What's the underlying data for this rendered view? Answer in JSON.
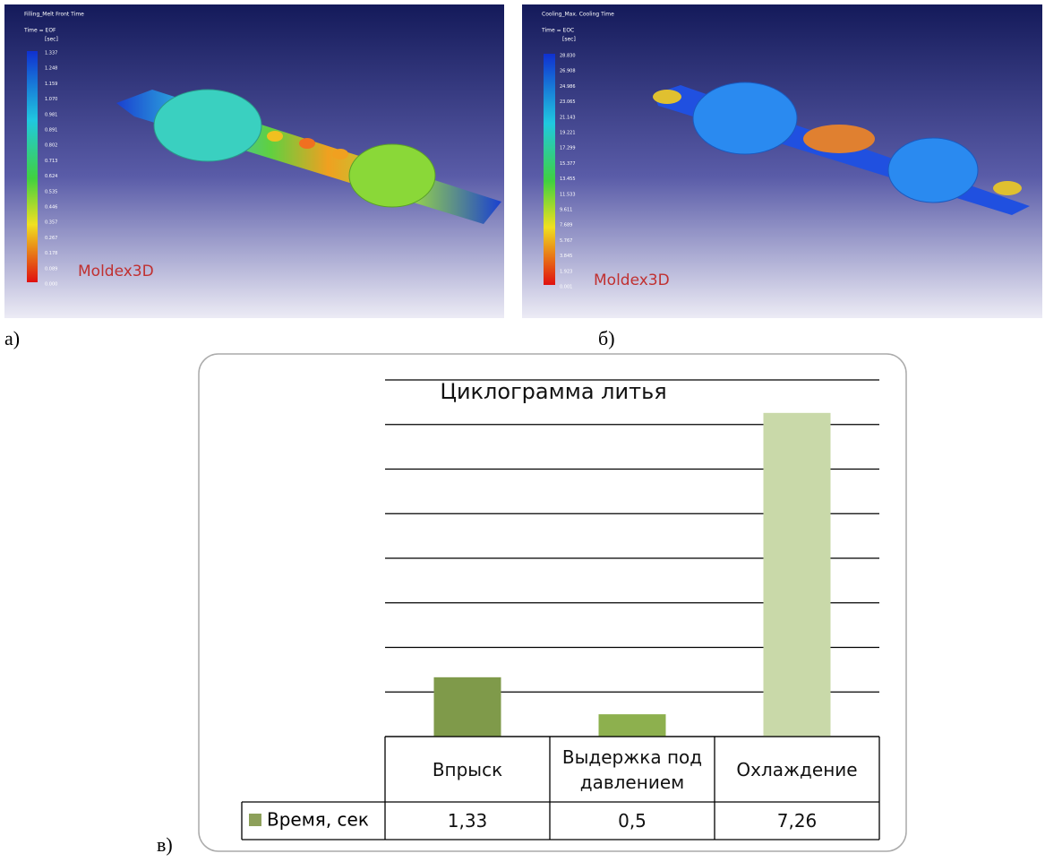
{
  "panels": [
    {
      "label": "а)",
      "title": "Filling_Melt Front Time",
      "time": "Time = EOF",
      "unit": "[sec]",
      "brand": "Moldex3D",
      "scale": [
        "1.337",
        "1.248",
        "1.159",
        "1.070",
        "0.981",
        "0.891",
        "0.802",
        "0.713",
        "0.624",
        "0.535",
        "0.446",
        "0.357",
        "0.267",
        "0.178",
        "0.089",
        "0.000"
      ]
    },
    {
      "label": "б)",
      "title": "Cooling_Max. Cooling Time",
      "time": "Time = EOC",
      "unit": "[sec]",
      "brand": "Moldex3D",
      "scale": [
        "28.830",
        "26.908",
        "24.986",
        "23.065",
        "21.143",
        "19.221",
        "17.299",
        "15.377",
        "13.455",
        "11.533",
        "9.611",
        "7.689",
        "5.767",
        "3.845",
        "1.923",
        "0.001"
      ]
    }
  ],
  "chart_label": "в)",
  "chart_data": {
    "type": "bar",
    "title": "Циклограмма литья",
    "categories": [
      "Впрыск",
      "Выдержка под давлением",
      "Охлаждение"
    ],
    "series": [
      {
        "name": "Время, сек",
        "color": "#8da05a",
        "colors": [
          "#7f9a4a",
          "#8db04e",
          "#c9d9a9"
        ],
        "values": [
          1.33,
          0.5,
          7.26
        ],
        "value_labels": [
          "1,33",
          "0,5",
          "7,26"
        ]
      }
    ],
    "ylim": [
      0,
      8
    ],
    "yticks": [
      0,
      1,
      2,
      3,
      4,
      5,
      6,
      7,
      8
    ],
    "grid": true,
    "show_tick_labels": false
  }
}
